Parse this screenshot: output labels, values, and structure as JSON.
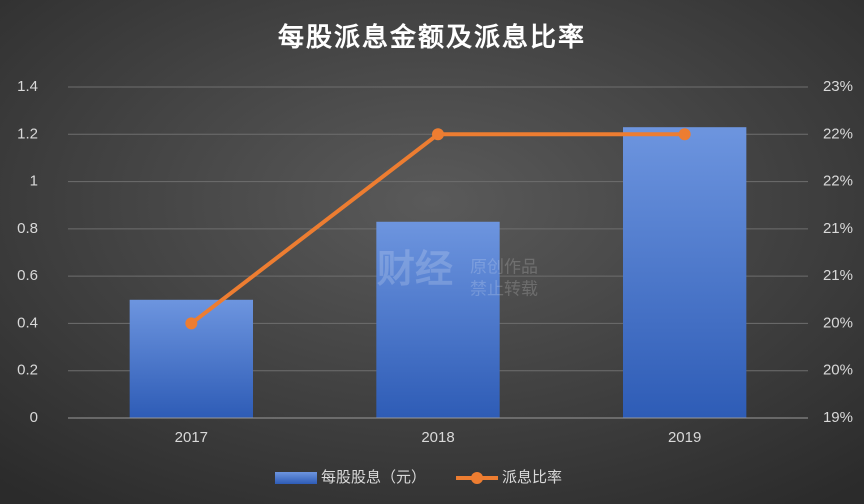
{
  "chart_data": {
    "type": "bar_line",
    "title": "每股派息金额及派息比率",
    "categories": [
      "2017",
      "2018",
      "2019"
    ],
    "series": [
      {
        "name": "每股股息（元）",
        "type": "bar",
        "color": "#4a78d0",
        "values": [
          0.5,
          0.83,
          1.23
        ]
      },
      {
        "name": "派息比率",
        "type": "line",
        "axis": "y2",
        "color": "#ed7d31",
        "values": [
          20,
          22,
          22
        ]
      }
    ],
    "ylim": [
      0,
      1.4
    ],
    "yticks": [
      0,
      0.2,
      0.4,
      0.6,
      0.8,
      1,
      1.2,
      1.4
    ],
    "y2lim": [
      19,
      22.5
    ],
    "y2ticks": [
      {
        "value": 19,
        "label": "19%"
      },
      {
        "value": 19.5,
        "label": "20%"
      },
      {
        "value": 20,
        "label": "20%"
      },
      {
        "value": 20.5,
        "label": "21%"
      },
      {
        "value": 21,
        "label": "21%"
      },
      {
        "value": 21.5,
        "label": "22%"
      },
      {
        "value": 22,
        "label": "22%"
      },
      {
        "value": 22.5,
        "label": "23%"
      }
    ],
    "grid": true,
    "legend": "bottom",
    "watermark": [
      "财经",
      "原创作品",
      "禁止转载"
    ]
  }
}
